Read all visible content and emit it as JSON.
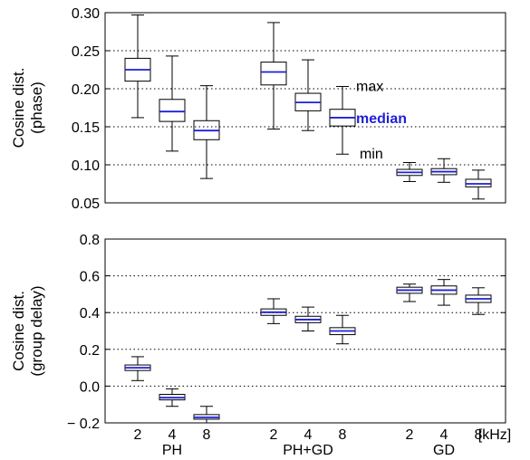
{
  "colors": {
    "median": "#1f1fd8",
    "box": "#000000",
    "grid": "#000000"
  },
  "chart_data": [
    {
      "type": "box",
      "ylabel_lines": [
        "Cosine dist.",
        "(phase)"
      ],
      "ylim": [
        0.05,
        0.3
      ],
      "yticks": [
        "0.05",
        "0.10",
        "0.15",
        "0.20",
        "0.25",
        "0.30"
      ],
      "ytick_values": [
        0.05,
        0.1,
        0.15,
        0.2,
        0.25,
        0.3
      ],
      "grid": "horizontal-dotted",
      "groups": [
        {
          "name": "PH",
          "boxes": [
            {
              "label": "2",
              "min": 0.162,
              "q1": 0.21,
              "median": 0.225,
              "q3": 0.24,
              "max": 0.297
            },
            {
              "label": "4",
              "min": 0.118,
              "q1": 0.157,
              "median": 0.17,
              "q3": 0.186,
              "max": 0.243
            },
            {
              "label": "8",
              "min": 0.082,
              "q1": 0.133,
              "median": 0.145,
              "q3": 0.158,
              "max": 0.204
            }
          ]
        },
        {
          "name": "PH+GD",
          "boxes": [
            {
              "label": "2",
              "min": 0.147,
              "q1": 0.205,
              "median": 0.222,
              "q3": 0.235,
              "max": 0.287
            },
            {
              "label": "4",
              "min": 0.145,
              "q1": 0.171,
              "median": 0.182,
              "q3": 0.194,
              "max": 0.238
            },
            {
              "label": "8",
              "min": 0.114,
              "q1": 0.151,
              "median": 0.162,
              "q3": 0.173,
              "max": 0.203
            }
          ]
        },
        {
          "name": "GD",
          "boxes": [
            {
              "label": "2",
              "min": 0.078,
              "q1": 0.086,
              "median": 0.09,
              "q3": 0.094,
              "max": 0.103
            },
            {
              "label": "4",
              "min": 0.077,
              "q1": 0.087,
              "median": 0.091,
              "q3": 0.095,
              "max": 0.108
            },
            {
              "label": "8",
              "min": 0.055,
              "q1": 0.071,
              "median": 0.075,
              "q3": 0.081,
              "max": 0.093
            }
          ]
        }
      ],
      "annotations": {
        "max": "max",
        "median": "median",
        "min": "min"
      }
    },
    {
      "type": "box",
      "ylabel_lines": [
        "Cosine dist.",
        "(group delay)"
      ],
      "ylim": [
        -0.2,
        0.8
      ],
      "yticks": [
        "− 0.2",
        "0.0",
        "0.2",
        "0.4",
        "0.6",
        "0.8"
      ],
      "ytick_values": [
        -0.2,
        0.0,
        0.2,
        0.4,
        0.6,
        0.8
      ],
      "grid": "horizontal-dotted",
      "groups": [
        {
          "name": "PH",
          "boxes": [
            {
              "label": "2",
              "min": 0.03,
              "q1": 0.085,
              "median": 0.1,
              "q3": 0.115,
              "max": 0.16
            },
            {
              "label": "4",
              "min": -0.11,
              "q1": -0.075,
              "median": -0.063,
              "q3": -0.045,
              "max": -0.015
            },
            {
              "label": "8",
              "min": -0.2,
              "q1": -0.18,
              "median": -0.17,
              "q3": -0.155,
              "max": -0.11
            }
          ]
        },
        {
          "name": "PH+GD",
          "boxes": [
            {
              "label": "2",
              "min": 0.34,
              "q1": 0.385,
              "median": 0.402,
              "q3": 0.42,
              "max": 0.475
            },
            {
              "label": "4",
              "min": 0.3,
              "q1": 0.345,
              "median": 0.362,
              "q3": 0.38,
              "max": 0.43
            },
            {
              "label": "8",
              "min": 0.23,
              "q1": 0.28,
              "median": 0.3,
              "q3": 0.318,
              "max": 0.385
            }
          ]
        },
        {
          "name": "GD",
          "boxes": [
            {
              "label": "2",
              "min": 0.46,
              "q1": 0.505,
              "median": 0.522,
              "q3": 0.538,
              "max": 0.555
            },
            {
              "label": "4",
              "min": 0.44,
              "q1": 0.5,
              "median": 0.522,
              "q3": 0.545,
              "max": 0.58
            },
            {
              "label": "8",
              "min": 0.39,
              "q1": 0.455,
              "median": 0.475,
              "q3": 0.495,
              "max": 0.535
            }
          ]
        }
      ],
      "x_unit": "[kHz]"
    }
  ]
}
